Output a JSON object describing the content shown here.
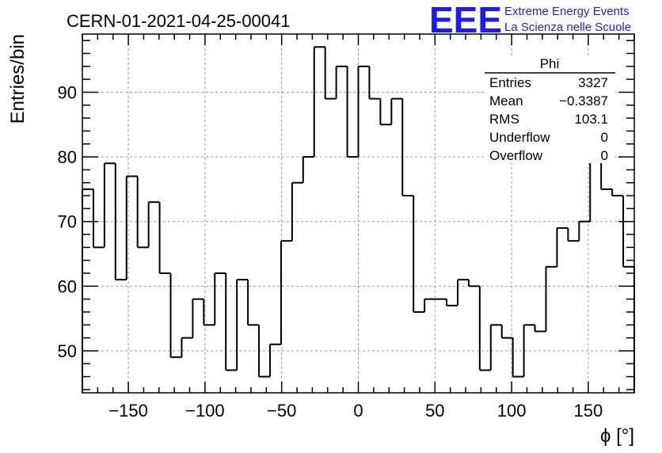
{
  "run_title": "CERN-01-2021-04-25-00041",
  "logo": {
    "text": "EEE",
    "line1": "Extreme Energy Events",
    "line2": "La Scienza nelle Scuole",
    "color": "#1a1aff"
  },
  "stats": {
    "name": "Phi",
    "rows": [
      {
        "label": "Entries",
        "value": "3327"
      },
      {
        "label": "Mean",
        "value": "−0.3387"
      },
      {
        "label": "RMS",
        "value": "103.1"
      },
      {
        "label": "Underflow",
        "value": "0"
      },
      {
        "label": "Overflow",
        "value": "0"
      }
    ]
  },
  "chart_data": {
    "type": "bar",
    "style": "step-histogram",
    "xlabel": "ϕ [°]",
    "ylabel": "Entries/bin",
    "xlim": [
      -180,
      180
    ],
    "ylim": [
      43.5,
      99
    ],
    "grid": true,
    "bin_width": 7.2,
    "bin_edges_start": -180,
    "x_ticks": [
      -150,
      -100,
      -50,
      0,
      50,
      100,
      150
    ],
    "x_tick_labels": [
      "−150",
      "−100",
      "−50",
      "0",
      "50",
      "100",
      "150"
    ],
    "y_ticks": [
      50,
      60,
      70,
      80,
      90
    ],
    "y_tick_labels": [
      "50",
      "60",
      "70",
      "80",
      "90"
    ],
    "values": [
      75,
      66,
      79,
      61,
      77,
      66,
      73,
      62,
      49,
      52,
      58,
      54,
      62,
      47,
      61,
      54,
      46,
      51,
      67,
      76,
      80,
      97,
      89,
      94,
      80,
      94,
      89,
      85,
      89,
      74,
      56,
      58,
      58,
      57,
      61,
      60,
      47,
      54,
      52,
      46,
      54,
      53,
      63,
      69,
      67,
      70,
      83,
      75,
      74,
      63
    ],
    "line_color": "#000000",
    "grid_color": "#9a9a9a"
  }
}
